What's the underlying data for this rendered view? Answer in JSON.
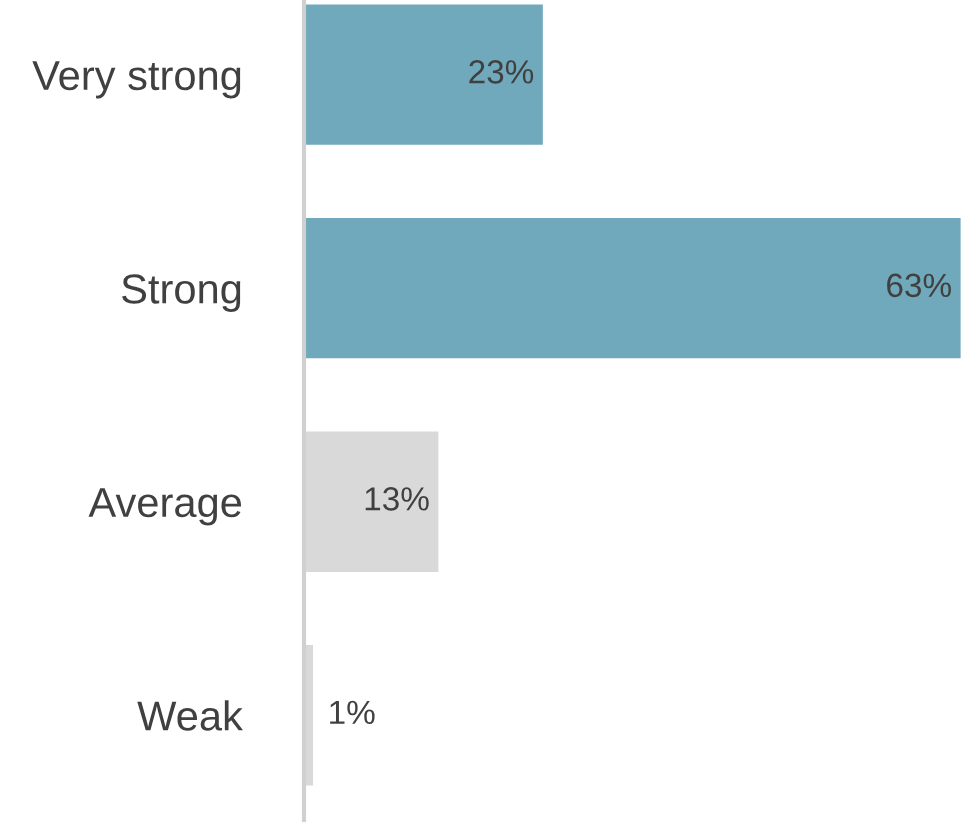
{
  "chart_data": {
    "type": "bar",
    "orientation": "horizontal",
    "categories": [
      "Very strong",
      "Strong",
      "Average",
      "Weak"
    ],
    "values": [
      23,
      63,
      13,
      1
    ],
    "colors": [
      "#6fa9bb",
      "#6fa9bb",
      "#d9d9d9",
      "#d9d9d9"
    ],
    "value_labels": [
      "23%",
      "63%",
      "13%",
      "1%"
    ],
    "grid": false,
    "legend": false
  }
}
